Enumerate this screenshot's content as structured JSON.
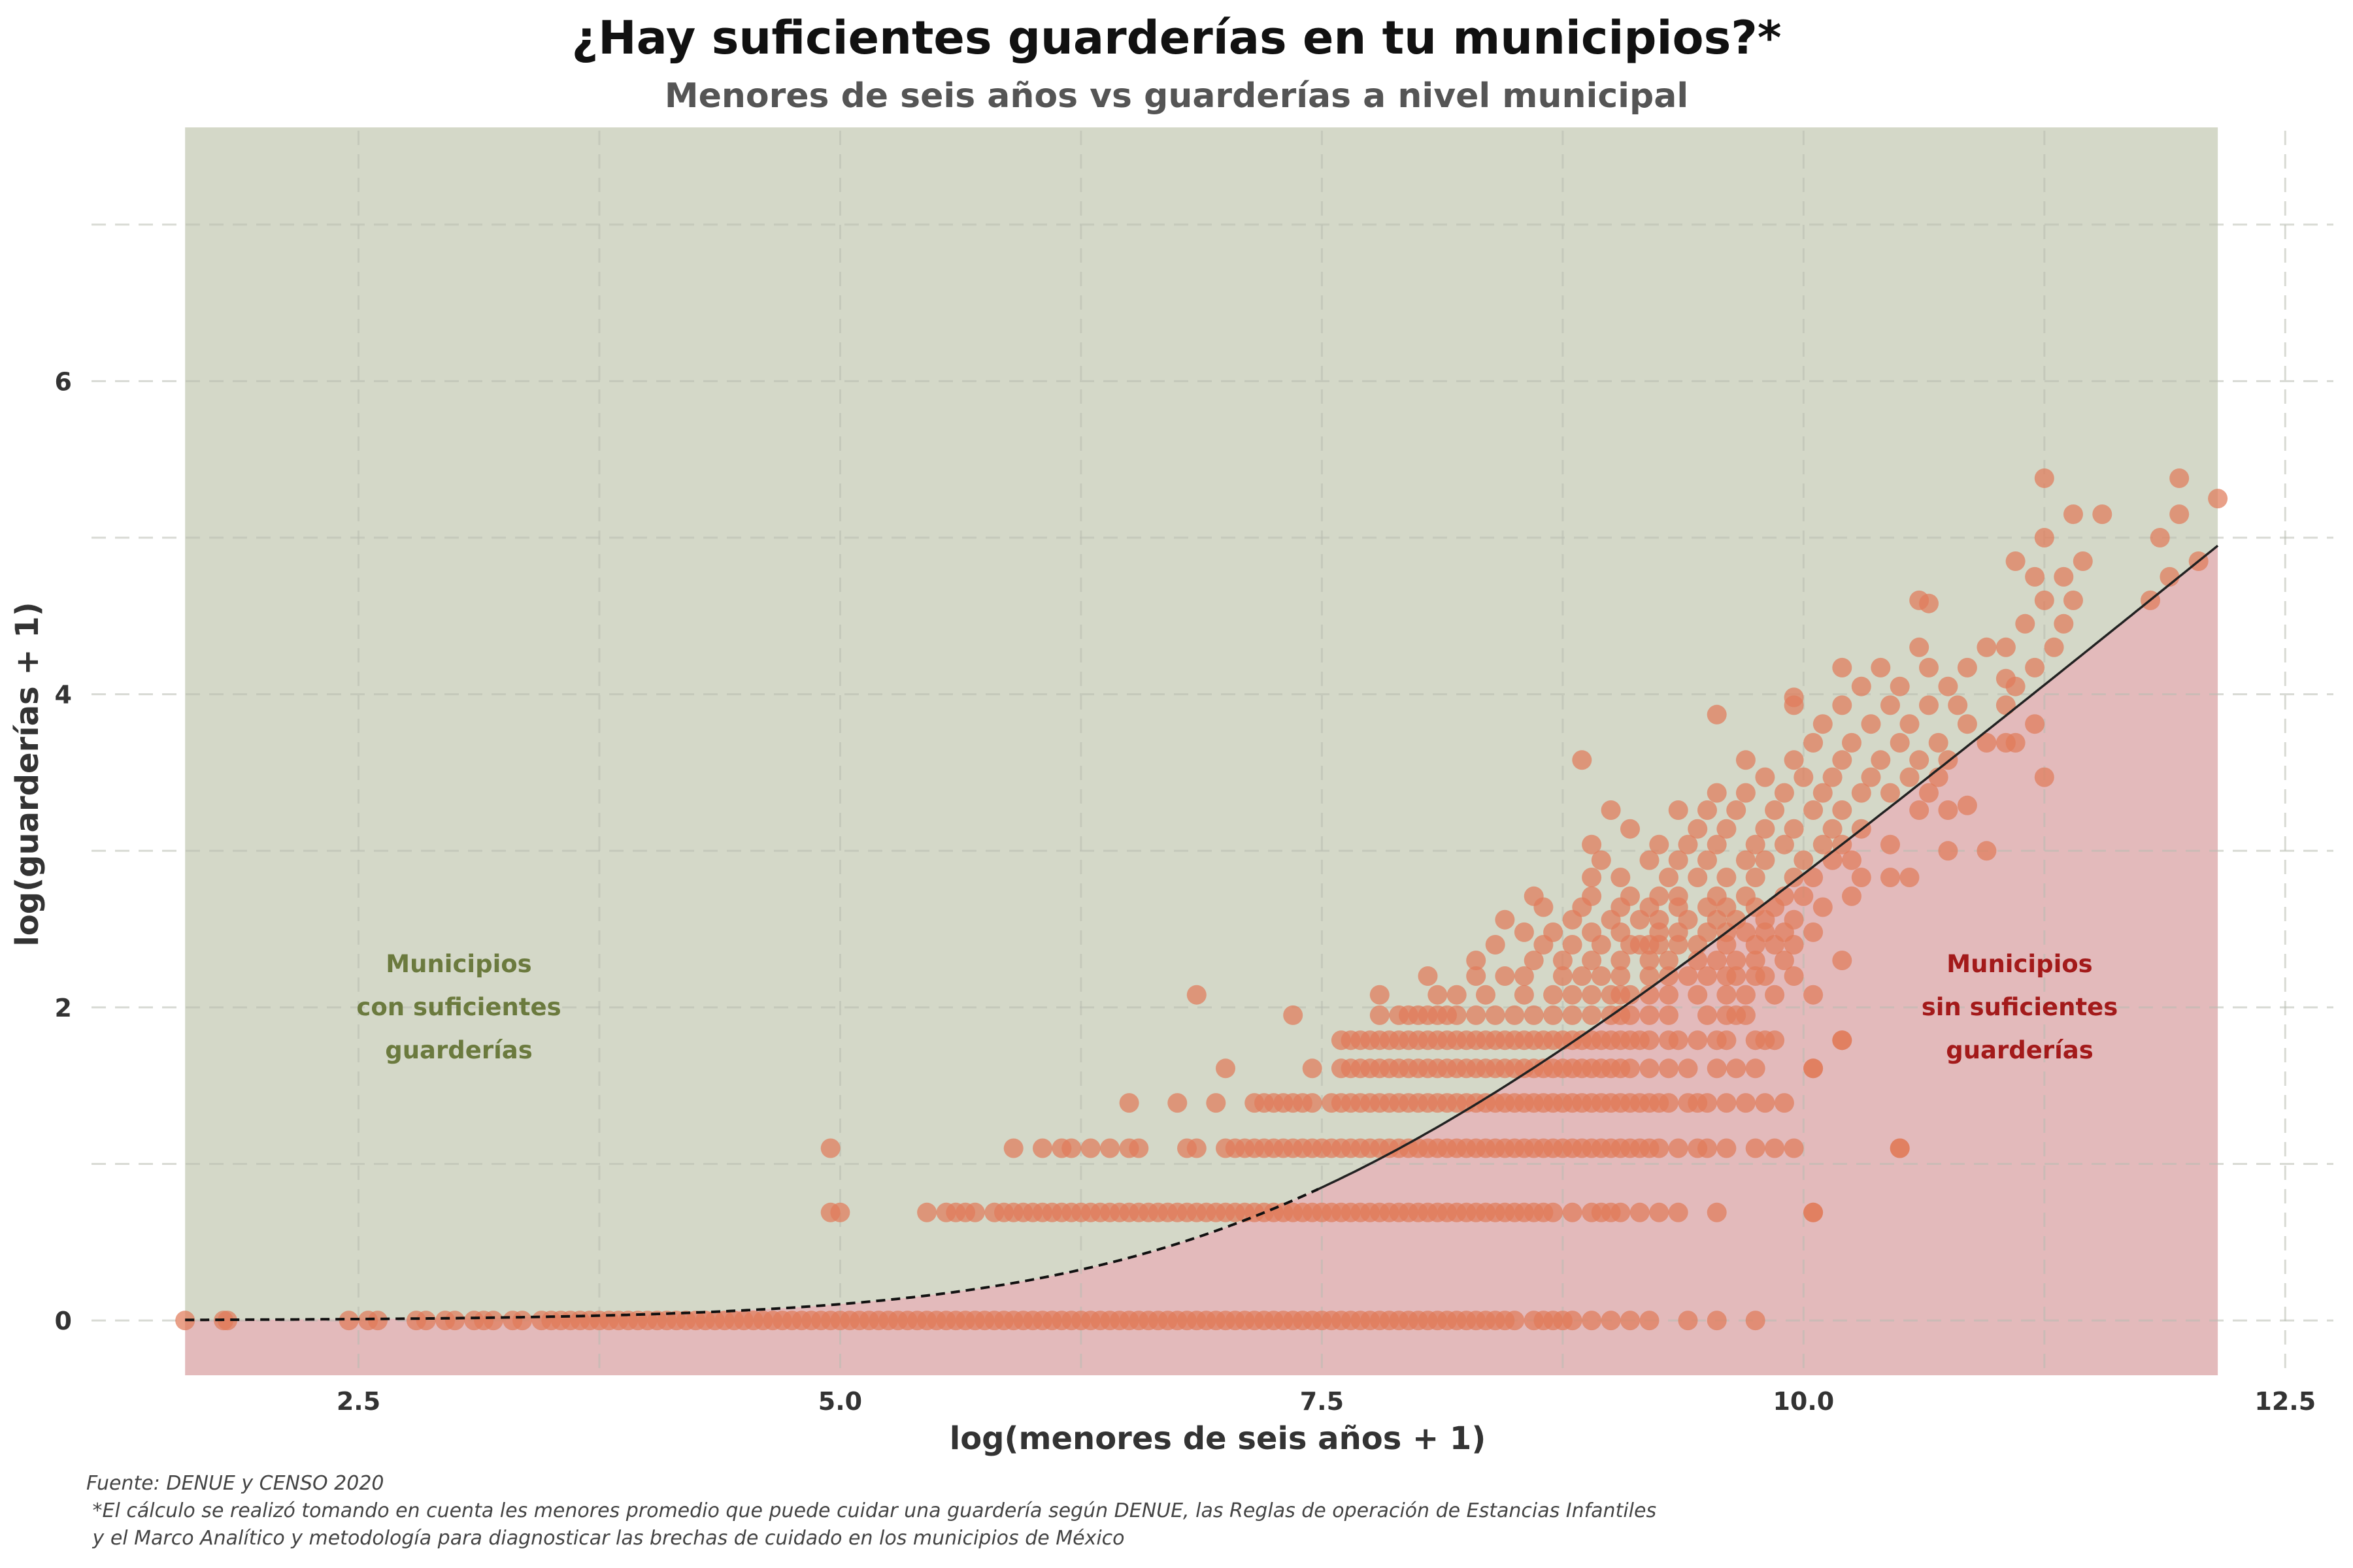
{
  "title": "¿Hay suficientes guarderías en tu municipios?*",
  "subtitle": "Menores de seis años vs guarderías a nivel municipal",
  "annotations": {
    "green": [
      "Municipios",
      "con suficientes",
      "guarderías"
    ],
    "red": [
      "Municipios",
      "sin suficientes",
      "guarderías"
    ]
  },
  "footnotes": [
    "Fuente: DENUE y CENSO 2020",
    " *El cálculo se realizó tomando en cuenta les menores promedio que puede cuidar una guardería según DENUE, las Reglas de operación de Estancias Infantiles",
    " y el Marco Analítico y metodología para diagnosticar las brechas de cuidado en los municipios de México"
  ],
  "colors": {
    "green_region": "#d4d8c8",
    "red_region": "#e3babb",
    "point": "#e07b5a",
    "green_text": "#6b7a3e",
    "red_text": "#a31a1a",
    "line": "#111111"
  },
  "chart_data": {
    "type": "scatter",
    "xlabel": "log(menores de seis años + 1)",
    "ylabel": "log(guarderías + 1)",
    "xlim": [
      1.25,
      12.75
    ],
    "ylim": [
      -0.35,
      7.6
    ],
    "x_ticks": [
      2.5,
      5.0,
      7.5,
      10.0,
      12.5
    ],
    "x_tick_labels": [
      "2.5",
      "5.0",
      "7.5",
      "10.0",
      "12.5"
    ],
    "y_ticks": [
      0,
      2,
      4,
      6
    ],
    "y_tick_labels": [
      "0",
      "2",
      "4",
      "6"
    ],
    "grid": true,
    "threshold_line": {
      "description": "capacity threshold: log(exp(x)/k + 1), dashed below x=7.5, solid above",
      "x_range": [
        1.6,
        12.15
      ],
      "dashed_until_x": 7.5,
      "children_per_daycare": 1350
    },
    "rows": [
      {
        "y": 0,
        "x": [
          1.6,
          1.8,
          1.82,
          2.45,
          2.55,
          2.6,
          2.8,
          2.85,
          2.95,
          3.0,
          3.1,
          3.15,
          3.2,
          3.3,
          3.35,
          3.45,
          3.5,
          3.55,
          3.6,
          3.65,
          3.7,
          3.75,
          3.8,
          3.85,
          3.9,
          3.95,
          4.0,
          4.05,
          4.1,
          4.15,
          4.2,
          4.25,
          4.3,
          4.35,
          4.4,
          4.45,
          4.5,
          4.55,
          4.6,
          4.65,
          4.7,
          4.75,
          4.8,
          4.85,
          4.9,
          4.95,
          5.0,
          5.05,
          5.1,
          5.15,
          5.2,
          5.25,
          5.3,
          5.35,
          5.4,
          5.45,
          5.5,
          5.55,
          5.6,
          5.65,
          5.7,
          5.75,
          5.8,
          5.85,
          5.9,
          5.95,
          6.0,
          6.05,
          6.1,
          6.15,
          6.2,
          6.25,
          6.3,
          6.35,
          6.4,
          6.45,
          6.5,
          6.55,
          6.6,
          6.65,
          6.7,
          6.75,
          6.8,
          6.85,
          6.9,
          6.95,
          7.0,
          7.05,
          7.1,
          7.15,
          7.2,
          7.25,
          7.3,
          7.35,
          7.4,
          7.45,
          7.5,
          7.55,
          7.6,
          7.65,
          7.7,
          7.75,
          7.8,
          7.85,
          7.9,
          7.95,
          8.0,
          8.05,
          8.1,
          8.15,
          8.2,
          8.25,
          8.3,
          8.35,
          8.4,
          8.45,
          8.5,
          8.6,
          8.65,
          8.7,
          8.75,
          8.8,
          8.9,
          9.0,
          9.1,
          9.2,
          9.4,
          9.55,
          9.75
        ]
      },
      {
        "y": 0.69,
        "x": [
          4.95,
          5.0,
          5.45,
          5.55,
          5.6,
          5.65,
          5.7,
          5.8,
          5.85,
          5.9,
          5.95,
          6.0,
          6.05,
          6.1,
          6.15,
          6.2,
          6.25,
          6.3,
          6.35,
          6.4,
          6.45,
          6.5,
          6.55,
          6.6,
          6.65,
          6.7,
          6.75,
          6.8,
          6.85,
          6.9,
          6.95,
          7.0,
          7.05,
          7.1,
          7.15,
          7.2,
          7.25,
          7.3,
          7.35,
          7.4,
          7.45,
          7.5,
          7.55,
          7.6,
          7.65,
          7.7,
          7.75,
          7.8,
          7.85,
          7.9,
          7.95,
          8.0,
          8.05,
          8.1,
          8.15,
          8.2,
          8.25,
          8.3,
          8.35,
          8.4,
          8.45,
          8.5,
          8.55,
          8.6,
          8.65,
          8.7,
          8.8,
          8.9,
          8.95,
          9.0,
          9.05,
          9.15,
          9.25,
          9.35,
          9.55,
          10.05
        ]
      },
      {
        "y": 1.1,
        "x": [
          4.95,
          5.9,
          6.05,
          6.15,
          6.2,
          6.3,
          6.4,
          6.5,
          6.55,
          6.8,
          6.85,
          7.0,
          7.05,
          7.1,
          7.15,
          7.2,
          7.25,
          7.3,
          7.35,
          7.4,
          7.45,
          7.5,
          7.55,
          7.6,
          7.65,
          7.7,
          7.75,
          7.8,
          7.85,
          7.9,
          7.95,
          8.0,
          8.05,
          8.1,
          8.15,
          8.2,
          8.25,
          8.3,
          8.35,
          8.4,
          8.45,
          8.5,
          8.55,
          8.6,
          8.65,
          8.7,
          8.75,
          8.8,
          8.85,
          8.9,
          8.95,
          9.0,
          9.05,
          9.1,
          9.15,
          9.2,
          9.25,
          9.35,
          9.45,
          9.5,
          9.6,
          9.75,
          9.85,
          9.95,
          10.5
        ]
      },
      {
        "y": 1.39,
        "x": [
          6.5,
          6.75,
          6.95,
          7.15,
          7.2,
          7.25,
          7.3,
          7.35,
          7.4,
          7.45,
          7.55,
          7.6,
          7.65,
          7.7,
          7.75,
          7.8,
          7.85,
          7.9,
          7.95,
          8.0,
          8.05,
          8.1,
          8.15,
          8.2,
          8.25,
          8.3,
          8.35,
          8.4,
          8.45,
          8.5,
          8.55,
          8.6,
          8.65,
          8.7,
          8.75,
          8.8,
          8.85,
          8.9,
          8.95,
          9.0,
          9.05,
          9.1,
          9.15,
          9.2,
          9.25,
          9.3,
          9.4,
          9.45,
          9.5,
          9.6,
          9.7,
          9.8,
          9.9
        ]
      },
      {
        "y": 1.61,
        "x": [
          7.0,
          7.45,
          7.6,
          7.65,
          7.7,
          7.75,
          7.8,
          7.85,
          7.9,
          7.95,
          8.0,
          8.05,
          8.1,
          8.15,
          8.2,
          8.25,
          8.3,
          8.35,
          8.4,
          8.45,
          8.5,
          8.55,
          8.6,
          8.65,
          8.7,
          8.75,
          8.8,
          8.85,
          8.9,
          8.95,
          9.0,
          9.05,
          9.1,
          9.2,
          9.3,
          9.4,
          9.55,
          9.65,
          9.75,
          10.05
        ]
      },
      {
        "y": 1.79,
        "x": [
          7.6,
          7.65,
          7.7,
          7.75,
          7.8,
          7.85,
          7.9,
          7.95,
          8.0,
          8.05,
          8.1,
          8.15,
          8.2,
          8.25,
          8.3,
          8.35,
          8.4,
          8.45,
          8.5,
          8.55,
          8.6,
          8.65,
          8.7,
          8.75,
          8.8,
          8.85,
          8.9,
          8.95,
          9.0,
          9.05,
          9.1,
          9.15,
          9.2,
          9.3,
          9.35,
          9.45,
          9.55,
          9.6,
          9.75,
          9.8,
          9.85,
          10.2
        ]
      },
      {
        "y": 1.95,
        "x": [
          7.35,
          7.8,
          7.9,
          7.95,
          8.0,
          8.05,
          8.1,
          8.15,
          8.2,
          8.3,
          8.4,
          8.5,
          8.6,
          8.7,
          8.8,
          8.9,
          9.0,
          9.05,
          9.1,
          9.2,
          9.3,
          9.5,
          9.6,
          9.65,
          9.7
        ]
      },
      {
        "y": 2.08,
        "x": [
          6.85,
          7.8,
          8.1,
          8.2,
          8.35,
          8.55,
          8.7,
          8.8,
          8.9,
          9.0,
          9.05,
          9.1,
          9.2,
          9.3,
          9.45,
          9.6,
          9.7,
          9.85,
          10.05
        ]
      },
      {
        "y": 2.2,
        "x": [
          8.05,
          8.3,
          8.45,
          8.55,
          8.75,
          8.85,
          8.95,
          9.05,
          9.2,
          9.3,
          9.4,
          9.5,
          9.6,
          9.65,
          9.75,
          9.8,
          9.95
        ]
      },
      {
        "y": 2.3,
        "x": [
          8.3,
          8.6,
          8.75,
          8.9,
          9.05,
          9.2,
          9.3,
          9.45,
          9.55,
          9.65,
          9.75,
          9.9,
          10.2
        ]
      },
      {
        "y": 2.4,
        "x": [
          8.4,
          8.65,
          8.8,
          8.95,
          9.1,
          9.15,
          9.2,
          9.25,
          9.35,
          9.45,
          9.6,
          9.75,
          9.85,
          9.95
        ]
      },
      {
        "y": 2.48,
        "x": [
          8.55,
          8.7,
          8.9,
          9.05,
          9.25,
          9.35,
          9.5,
          9.6,
          9.7,
          9.8,
          9.9,
          10.05
        ]
      },
      {
        "y": 2.56,
        "x": [
          8.45,
          8.8,
          9.0,
          9.15,
          9.25,
          9.4,
          9.55,
          9.65,
          9.8,
          9.95
        ]
      },
      {
        "y": 2.64,
        "x": [
          8.65,
          8.85,
          9.05,
          9.2,
          9.35,
          9.5,
          9.6,
          9.75,
          9.85,
          10.1
        ]
      },
      {
        "y": 2.71,
        "x": [
          8.6,
          8.9,
          9.1,
          9.25,
          9.35,
          9.55,
          9.7,
          9.9,
          10.0,
          10.25
        ]
      },
      {
        "y": 2.83,
        "x": [
          8.9,
          9.05,
          9.3,
          9.45,
          9.6,
          9.75,
          9.95,
          10.05,
          10.3,
          10.45
        ]
      },
      {
        "y": 2.94,
        "x": [
          8.95,
          9.2,
          9.35,
          9.5,
          9.7,
          9.8,
          10.0,
          10.15,
          10.25
        ]
      },
      {
        "y": 3.04,
        "x": [
          8.9,
          9.25,
          9.4,
          9.55,
          9.75,
          9.9,
          10.1,
          10.2,
          10.45
        ]
      },
      {
        "y": 3.14,
        "x": [
          9.1,
          9.45,
          9.6,
          9.8,
          9.95,
          10.15,
          10.3
        ]
      },
      {
        "y": 3.26,
        "x": [
          9.0,
          9.35,
          9.5,
          9.65,
          9.85,
          10.05,
          10.2,
          10.6,
          10.75
        ]
      },
      {
        "y": 3.37,
        "x": [
          9.55,
          9.7,
          9.9,
          10.1,
          10.3,
          10.45,
          10.65
        ]
      },
      {
        "y": 3.47,
        "x": [
          9.8,
          10.0,
          10.15,
          10.35,
          10.55,
          10.7,
          11.25
        ]
      },
      {
        "y": 3.58,
        "x": [
          8.85,
          9.7,
          9.95,
          10.2,
          10.4,
          10.6,
          10.75
        ]
      },
      {
        "y": 3.69,
        "x": [
          10.05,
          10.25,
          10.5,
          10.7,
          10.95,
          11.1
        ]
      },
      {
        "y": 3.81,
        "x": [
          10.1,
          10.35,
          10.55,
          10.85,
          11.2
        ]
      },
      {
        "y": 3.93,
        "x": [
          9.95,
          10.2,
          10.45,
          10.65,
          10.8,
          11.05
        ]
      },
      {
        "y": 4.05,
        "x": [
          10.3,
          10.5,
          10.75,
          11.1
        ]
      },
      {
        "y": 4.17,
        "x": [
          10.2,
          10.4,
          10.65,
          10.85,
          11.2
        ]
      },
      {
        "y": 4.3,
        "x": [
          10.6,
          10.95,
          11.05,
          11.3
        ]
      },
      {
        "y": 4.45,
        "x": [
          11.15,
          11.35
        ]
      },
      {
        "y": 4.6,
        "x": [
          10.6,
          11.25,
          11.4,
          11.8
        ]
      },
      {
        "y": 4.75,
        "x": [
          11.2,
          11.35,
          11.9
        ]
      },
      {
        "y": 4.85,
        "x": [
          11.1,
          11.45,
          12.05
        ]
      },
      {
        "y": 5.0,
        "x": [
          11.25,
          11.85
        ]
      },
      {
        "y": 5.15,
        "x": [
          11.4,
          11.55,
          11.95
        ]
      },
      {
        "y": 5.25,
        "x": [
          12.15
        ]
      },
      {
        "y": 5.38,
        "x": [
          11.25,
          11.95
        ]
      }
    ],
    "extra_points": [
      {
        "x": 10.05,
        "y": 0.69
      },
      {
        "x": 10.05,
        "y": 1.61
      },
      {
        "x": 10.2,
        "y": 1.79
      },
      {
        "x": 10.5,
        "y": 1.1
      },
      {
        "x": 9.55,
        "y": 3.87
      },
      {
        "x": 9.95,
        "y": 3.98
      },
      {
        "x": 10.65,
        "y": 4.58
      },
      {
        "x": 11.05,
        "y": 4.1
      },
      {
        "x": 11.05,
        "y": 3.69
      },
      {
        "x": 10.85,
        "y": 3.29
      },
      {
        "x": 10.95,
        "y": 3.0
      },
      {
        "x": 10.75,
        "y": 3.0
      },
      {
        "x": 10.55,
        "y": 2.83
      }
    ]
  }
}
